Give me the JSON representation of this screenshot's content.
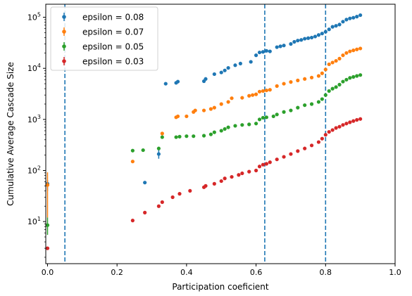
{
  "chart_data": {
    "type": "scatter",
    "xlabel": "Participation coeficient",
    "ylabel": "Cumulative Average Cascade Size",
    "xlim": [
      -0.005,
      1.0
    ],
    "ylim": [
      1.5,
      180000
    ],
    "yscale": "log",
    "xticks": [
      0.0,
      0.2,
      0.4,
      0.6,
      0.8,
      1.0
    ],
    "xtick_labels": [
      "0.0",
      "0.2",
      "0.4",
      "0.6",
      "0.8",
      "1.0"
    ],
    "yticks": [
      10,
      100,
      1000,
      10000,
      100000
    ],
    "ytick_labels": [
      {
        "base": "10",
        "exp": "1"
      },
      {
        "base": "10",
        "exp": "2"
      },
      {
        "base": "10",
        "exp": "3"
      },
      {
        "base": "10",
        "exp": "4"
      },
      {
        "base": "10",
        "exp": "5"
      }
    ],
    "vlines": [
      0.05,
      0.625,
      0.8
    ],
    "vline_color": "#1f77b4",
    "legend_position": "top-left",
    "grid": false,
    "series": [
      {
        "name": "epsilon = 0.08",
        "color": "#1f77b4",
        "points": [
          [
            0.0,
            55
          ],
          [
            0.28,
            58
          ],
          [
            0.32,
            210
          ],
          [
            0.34,
            5000
          ],
          [
            0.37,
            5200
          ],
          [
            0.375,
            5500
          ],
          [
            0.45,
            5600
          ],
          [
            0.455,
            6200
          ],
          [
            0.48,
            7700
          ],
          [
            0.5,
            8300
          ],
          [
            0.51,
            9100
          ],
          [
            0.52,
            10200
          ],
          [
            0.54,
            11500
          ],
          [
            0.555,
            12400
          ],
          [
            0.585,
            13400
          ],
          [
            0.6,
            18000
          ],
          [
            0.61,
            20500
          ],
          [
            0.62,
            21000
          ],
          [
            0.63,
            22000
          ],
          [
            0.64,
            21500
          ],
          [
            0.66,
            26000
          ],
          [
            0.67,
            27000
          ],
          [
            0.68,
            28000
          ],
          [
            0.7,
            30000
          ],
          [
            0.71,
            33000
          ],
          [
            0.72,
            35000
          ],
          [
            0.73,
            36000
          ],
          [
            0.74,
            38000
          ],
          [
            0.75,
            39000
          ],
          [
            0.76,
            40000
          ],
          [
            0.77,
            42000
          ],
          [
            0.78,
            45000
          ],
          [
            0.79,
            48000
          ],
          [
            0.8,
            52000
          ],
          [
            0.81,
            58000
          ],
          [
            0.82,
            65000
          ],
          [
            0.83,
            68000
          ],
          [
            0.84,
            72000
          ],
          [
            0.85,
            82000
          ],
          [
            0.86,
            90000
          ],
          [
            0.87,
            95000
          ],
          [
            0.88,
            98000
          ],
          [
            0.89,
            103000
          ],
          [
            0.9,
            110000
          ]
        ],
        "errors": [
          [
            0.0,
            40,
            65
          ],
          [
            0.32,
            170,
            260
          ]
        ]
      },
      {
        "name": "epsilon = 0.07",
        "color": "#ff7f0e",
        "points": [
          [
            0.0,
            52
          ],
          [
            0.245,
            150
          ],
          [
            0.33,
            530
          ],
          [
            0.37,
            1100
          ],
          [
            0.375,
            1150
          ],
          [
            0.4,
            1150
          ],
          [
            0.42,
            1400
          ],
          [
            0.425,
            1500
          ],
          [
            0.45,
            1500
          ],
          [
            0.47,
            1600
          ],
          [
            0.48,
            1700
          ],
          [
            0.5,
            2000
          ],
          [
            0.52,
            2200
          ],
          [
            0.53,
            2600
          ],
          [
            0.56,
            2650
          ],
          [
            0.58,
            2900
          ],
          [
            0.59,
            3000
          ],
          [
            0.6,
            3100
          ],
          [
            0.61,
            3500
          ],
          [
            0.62,
            3600
          ],
          [
            0.63,
            3700
          ],
          [
            0.64,
            3800
          ],
          [
            0.66,
            4500
          ],
          [
            0.68,
            5000
          ],
          [
            0.7,
            5400
          ],
          [
            0.72,
            5800
          ],
          [
            0.74,
            6200
          ],
          [
            0.76,
            6600
          ],
          [
            0.78,
            7100
          ],
          [
            0.79,
            8000
          ],
          [
            0.8,
            9500
          ],
          [
            0.81,
            12000
          ],
          [
            0.82,
            13000
          ],
          [
            0.83,
            14000
          ],
          [
            0.84,
            15500
          ],
          [
            0.85,
            18000
          ],
          [
            0.86,
            20000
          ],
          [
            0.87,
            21500
          ],
          [
            0.88,
            22500
          ],
          [
            0.89,
            23500
          ],
          [
            0.9,
            24500
          ]
        ],
        "errors": [
          [
            0.0,
            12,
            92
          ]
        ]
      },
      {
        "name": "epsilon = 0.05",
        "color": "#2ca02c",
        "points": [
          [
            0.0,
            8.5
          ],
          [
            0.245,
            245
          ],
          [
            0.275,
            250
          ],
          [
            0.32,
            270
          ],
          [
            0.33,
            450
          ],
          [
            0.37,
            450
          ],
          [
            0.38,
            460
          ],
          [
            0.4,
            470
          ],
          [
            0.42,
            470
          ],
          [
            0.45,
            480
          ],
          [
            0.47,
            510
          ],
          [
            0.48,
            560
          ],
          [
            0.5,
            600
          ],
          [
            0.51,
            650
          ],
          [
            0.52,
            700
          ],
          [
            0.54,
            750
          ],
          [
            0.56,
            780
          ],
          [
            0.58,
            800
          ],
          [
            0.6,
            830
          ],
          [
            0.61,
            1000
          ],
          [
            0.62,
            1080
          ],
          [
            0.63,
            1100
          ],
          [
            0.65,
            1150
          ],
          [
            0.66,
            1250
          ],
          [
            0.68,
            1400
          ],
          [
            0.7,
            1500
          ],
          [
            0.72,
            1700
          ],
          [
            0.74,
            1900
          ],
          [
            0.76,
            2000
          ],
          [
            0.78,
            2200
          ],
          [
            0.79,
            2500
          ],
          [
            0.8,
            3000
          ],
          [
            0.81,
            3600
          ],
          [
            0.82,
            4000
          ],
          [
            0.83,
            4300
          ],
          [
            0.84,
            4800
          ],
          [
            0.85,
            5500
          ],
          [
            0.86,
            6000
          ],
          [
            0.87,
            6500
          ],
          [
            0.88,
            6800
          ],
          [
            0.89,
            7100
          ],
          [
            0.9,
            7400
          ]
        ],
        "errors": [
          [
            0.0,
            5.5,
            12
          ]
        ]
      },
      {
        "name": "epsilon = 0.03",
        "color": "#d62728",
        "points": [
          [
            0.0,
            3
          ],
          [
            0.245,
            10.5
          ],
          [
            0.28,
            15
          ],
          [
            0.32,
            20
          ],
          [
            0.33,
            24
          ],
          [
            0.36,
            30
          ],
          [
            0.38,
            35
          ],
          [
            0.41,
            40
          ],
          [
            0.45,
            47
          ],
          [
            0.455,
            50
          ],
          [
            0.48,
            55
          ],
          [
            0.5,
            62
          ],
          [
            0.51,
            70
          ],
          [
            0.53,
            75
          ],
          [
            0.55,
            82
          ],
          [
            0.56,
            88
          ],
          [
            0.58,
            95
          ],
          [
            0.6,
            100
          ],
          [
            0.61,
            120
          ],
          [
            0.62,
            130
          ],
          [
            0.63,
            135
          ],
          [
            0.64,
            145
          ],
          [
            0.66,
            165
          ],
          [
            0.68,
            185
          ],
          [
            0.7,
            210
          ],
          [
            0.72,
            240
          ],
          [
            0.74,
            270
          ],
          [
            0.76,
            310
          ],
          [
            0.78,
            360
          ],
          [
            0.79,
            420
          ],
          [
            0.8,
            500
          ],
          [
            0.81,
            570
          ],
          [
            0.82,
            620
          ],
          [
            0.83,
            680
          ],
          [
            0.84,
            720
          ],
          [
            0.85,
            780
          ],
          [
            0.86,
            830
          ],
          [
            0.87,
            880
          ],
          [
            0.88,
            930
          ],
          [
            0.89,
            980
          ],
          [
            0.9,
            1020
          ]
        ],
        "errors": []
      }
    ]
  }
}
